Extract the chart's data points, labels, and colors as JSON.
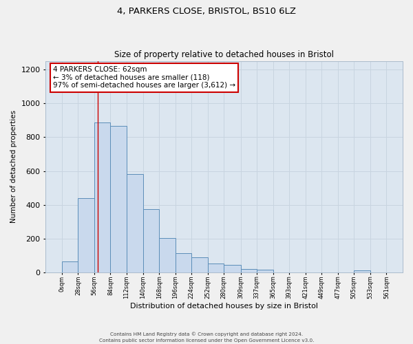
{
  "title1": "4, PARKERS CLOSE, BRISTOL, BS10 6LZ",
  "title2": "Size of property relative to detached houses in Bristol",
  "xlabel": "Distribution of detached houses by size in Bristol",
  "ylabel": "Number of detached properties",
  "bar_edges": [
    0,
    28,
    56,
    84,
    112,
    140,
    168,
    196,
    224,
    252,
    280,
    309,
    337,
    365,
    393,
    421,
    449,
    477,
    505,
    533,
    561
  ],
  "bar_heights": [
    65,
    440,
    885,
    865,
    580,
    375,
    205,
    115,
    90,
    55,
    45,
    20,
    17,
    0,
    0,
    0,
    0,
    0,
    15,
    0
  ],
  "bar_color": "#c9d9ed",
  "bar_edge_color": "#5b8db8",
  "property_line_x": 62,
  "property_line_color": "#cc0000",
  "annotation_line1": "4 PARKERS CLOSE: 62sqm",
  "annotation_line2": "← 3% of detached houses are smaller (118)",
  "annotation_line3": "97% of semi-detached houses are larger (3,612) →",
  "annotation_box_color": "#ffffff",
  "annotation_border_color": "#cc0000",
  "ylim": [
    0,
    1250
  ],
  "yticks": [
    0,
    200,
    400,
    600,
    800,
    1000,
    1200
  ],
  "xtick_labels": [
    "0sqm",
    "28sqm",
    "56sqm",
    "84sqm",
    "112sqm",
    "140sqm",
    "168sqm",
    "196sqm",
    "224sqm",
    "252sqm",
    "280sqm",
    "309sqm",
    "337sqm",
    "365sqm",
    "393sqm",
    "421sqm",
    "449sqm",
    "477sqm",
    "505sqm",
    "533sqm",
    "561sqm"
  ],
  "grid_color": "#c8d4e0",
  "bg_color": "#dce6f0",
  "fig_bg_color": "#f0f0f0",
  "footer1": "Contains HM Land Registry data © Crown copyright and database right 2024.",
  "footer2": "Contains public sector information licensed under the Open Government Licence v3.0."
}
